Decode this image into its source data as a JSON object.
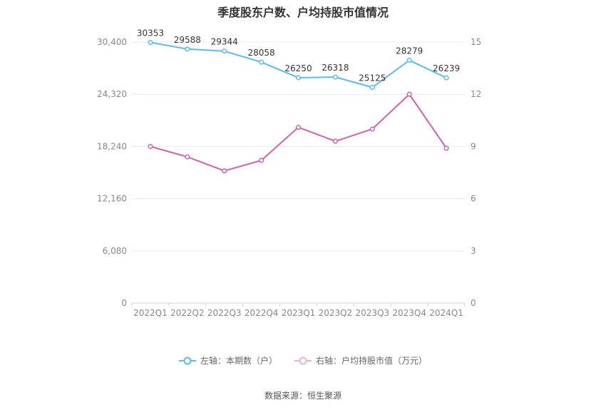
{
  "chart_data": {
    "type": "line",
    "title": "季度股东户数、户均持股市值情况",
    "categories": [
      "2022Q1",
      "2022Q2",
      "2022Q3",
      "2022Q4",
      "2023Q1",
      "2023Q2",
      "2023Q3",
      "2023Q4",
      "2024Q1"
    ],
    "left_axis": {
      "ticks": [
        "0",
        "6,080",
        "12,160",
        "18,240",
        "24,320",
        "30,400"
      ],
      "ylim": [
        0,
        30400
      ]
    },
    "right_axis": {
      "ticks": [
        "0",
        "3",
        "6",
        "9",
        "12",
        "15"
      ],
      "ylim": [
        0,
        15
      ]
    },
    "series": [
      {
        "name": "左轴：本期数（户）",
        "axis": "left",
        "color": "#5bbcec",
        "values": [
          30353,
          29588,
          29344,
          28058,
          26250,
          26318,
          25125,
          28279,
          26239
        ],
        "show_labels": true
      },
      {
        "name": "右轴：户均持股市值（万元）",
        "axis": "right",
        "color": "#d062a8",
        "values": [
          9.0,
          8.4,
          7.6,
          8.2,
          10.1,
          9.3,
          10.0,
          12.0,
          8.9
        ],
        "show_labels": false
      }
    ],
    "grid": true,
    "legend_position": "bottom"
  },
  "source": "数据来源：恒生聚源"
}
